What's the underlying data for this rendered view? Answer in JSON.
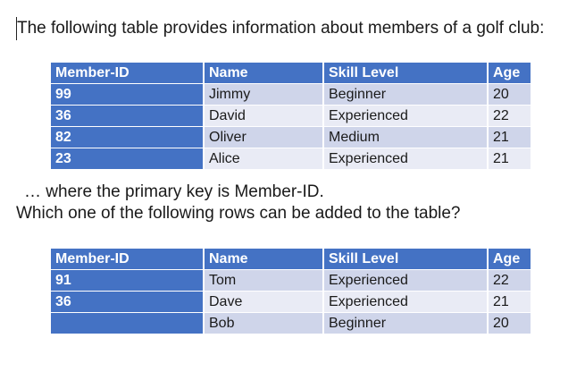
{
  "intro": "The following table provides information about members of a golf club:",
  "table1": {
    "headers": [
      "Member-ID",
      "Name",
      "Skill Level",
      "Age"
    ],
    "rows": [
      [
        "99",
        "Jimmy",
        "Beginner",
        "20"
      ],
      [
        "36",
        "David",
        "Experienced",
        "22"
      ],
      [
        "82",
        "Oliver",
        "Medium",
        "21"
      ],
      [
        "23",
        "Alice",
        "Experienced",
        "21"
      ]
    ]
  },
  "question": {
    "line1": "… where the primary key is Member-ID.",
    "line2": "Which one of the following rows can be added to the table?"
  },
  "table2": {
    "headers": [
      "Member-ID",
      "Name",
      "Skill Level",
      "Age"
    ],
    "rows": [
      [
        "91",
        "Tom",
        "Experienced",
        "22"
      ],
      [
        "36",
        "Dave",
        "Experienced",
        "21"
      ],
      [
        "",
        "Bob",
        "Beginner",
        "20"
      ]
    ]
  },
  "colors": {
    "header": "#4472c4",
    "row_odd": "#cfd5ea",
    "row_even": "#e9ebf5"
  }
}
